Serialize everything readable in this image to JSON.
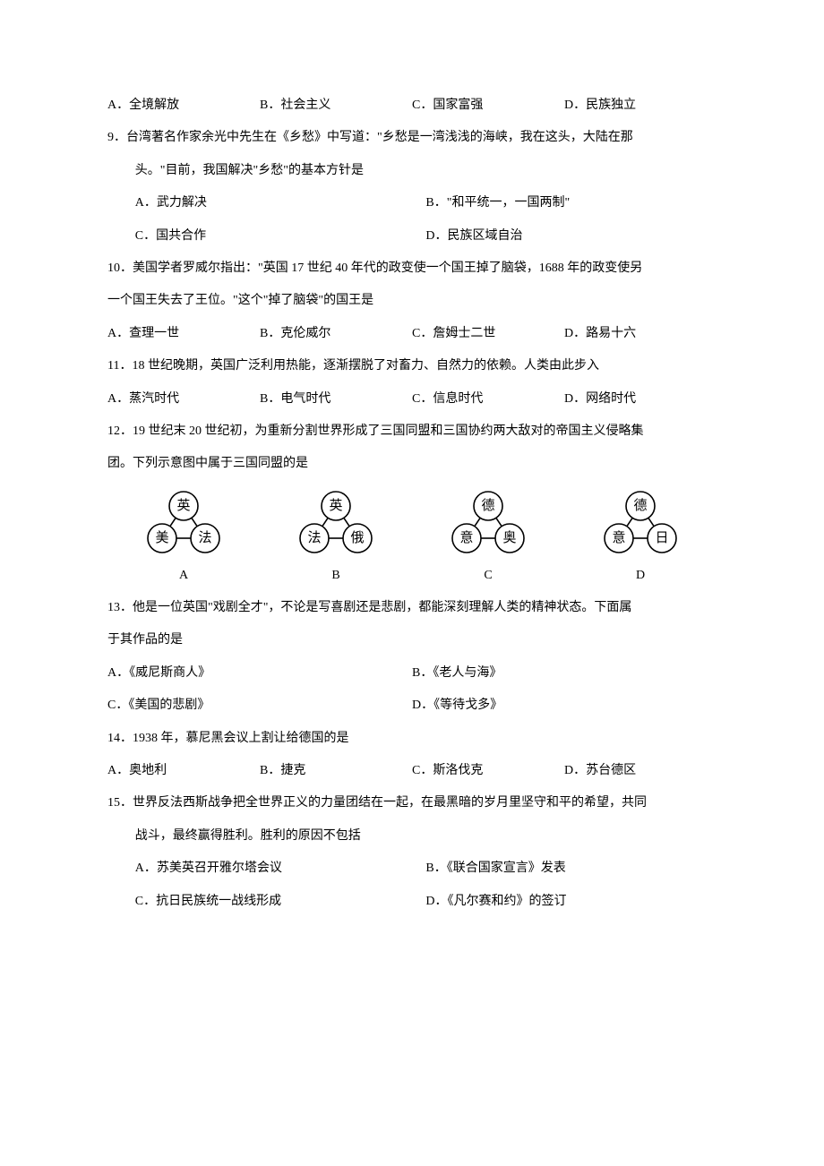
{
  "q8": {
    "opts": [
      {
        "k": "A．",
        "v": "全境解放"
      },
      {
        "k": "B．",
        "v": "社会主义"
      },
      {
        "k": "C．",
        "v": "国家富强"
      },
      {
        "k": "D．",
        "v": "民族独立"
      }
    ]
  },
  "q9": {
    "stem1": "9．台湾著名作家余光中先生在《乡愁》中写道：\"乡愁是一湾浅浅的海峡，我在这头，大陆在那",
    "stem2": "头。\"目前，我国解决\"乡愁\"的基本方针是",
    "opts1": [
      {
        "k": "A．",
        "v": "武力解决"
      },
      {
        "k": "B．",
        "v": "\"和平统一，一国两制\""
      }
    ],
    "opts2": [
      {
        "k": "C．",
        "v": "国共合作"
      },
      {
        "k": "D．",
        "v": "民族区域自治"
      }
    ]
  },
  "q10": {
    "stem1": "10．美国学者罗威尔指出：\"英国 17 世纪 40 年代的政变使一个国王掉了脑袋，1688 年的政变使另",
    "stem2": "一个国王失去了王位。\"这个\"掉了脑袋\"的国王是",
    "opts": [
      {
        "k": "A．",
        "v": "查理一世"
      },
      {
        "k": "B．",
        "v": "克伦威尔"
      },
      {
        "k": "C．",
        "v": "詹姆士二世"
      },
      {
        "k": "D．",
        "v": "路易十六"
      }
    ]
  },
  "q11": {
    "stem": "11．18 世纪晚期，英国广泛利用热能，逐渐摆脱了对畜力、自然力的依赖。人类由此步入",
    "opts": [
      {
        "k": "A．",
        "v": "蒸汽时代"
      },
      {
        "k": "B．",
        "v": "电气时代"
      },
      {
        "k": "C．",
        "v": "信息时代"
      },
      {
        "k": "D．",
        "v": "网络时代"
      }
    ]
  },
  "q12": {
    "stem1": "12．19 世纪末 20 世纪初，为重新分割世界形成了三国同盟和三国协约两大敌对的帝国主义侵略集",
    "stem2": "团。下列示意图中属于三国同盟的是",
    "styling": {
      "node_stroke": "#000000",
      "node_fill": "#ffffff",
      "node_radius": 16,
      "topY": 20,
      "bottomY": 56,
      "leftX": 36,
      "rightX": 84,
      "centerX": 60,
      "font_size": 15,
      "font_family": "SimSun",
      "line_width": 1.6
    },
    "diagrams": [
      {
        "letter": "A",
        "top": "英",
        "left": "美",
        "right": "法"
      },
      {
        "letter": "B",
        "top": "英",
        "left": "法",
        "right": "俄"
      },
      {
        "letter": "C",
        "top": "德",
        "left": "意",
        "right": "奥"
      },
      {
        "letter": "D",
        "top": "德",
        "left": "意",
        "right": "日"
      }
    ]
  },
  "q13": {
    "stem1": "13．他是一位英国\"戏剧全才\"，不论是写喜剧还是悲剧，都能深刻理解人类的精神状态。下面属",
    "stem2": "于其作品的是",
    "opts1": [
      {
        "k": "A．",
        "v": "《威尼斯商人》"
      },
      {
        "k": "B．",
        "v": "《老人与海》"
      }
    ],
    "opts2": [
      {
        "k": "C．",
        "v": "《美国的悲剧》"
      },
      {
        "k": "D．",
        "v": "《等待戈多》"
      }
    ]
  },
  "q14": {
    "stem": "14．1938 年，慕尼黑会议上割让给德国的是",
    "opts": [
      {
        "k": "A．",
        "v": "奥地利"
      },
      {
        "k": "B．",
        "v": "捷克"
      },
      {
        "k": "C．",
        "v": "斯洛伐克"
      },
      {
        "k": "D．",
        "v": "苏台德区"
      }
    ]
  },
  "q15": {
    "stem1": "15．世界反法西斯战争把全世界正义的力量团结在一起，在最黑暗的岁月里坚守和平的希望，共同",
    "stem2": "战斗，最终赢得胜利。胜利的原因不包括",
    "opts1": [
      {
        "k": "A．",
        "v": "苏美英召开雅尔塔会议"
      },
      {
        "k": "B．",
        "v": "《联合国家宣言》发表"
      }
    ],
    "opts2": [
      {
        "k": "C．",
        "v": "抗日民族统一战线形成"
      },
      {
        "k": "D．",
        "v": "《凡尔赛和约》的签订"
      }
    ]
  }
}
